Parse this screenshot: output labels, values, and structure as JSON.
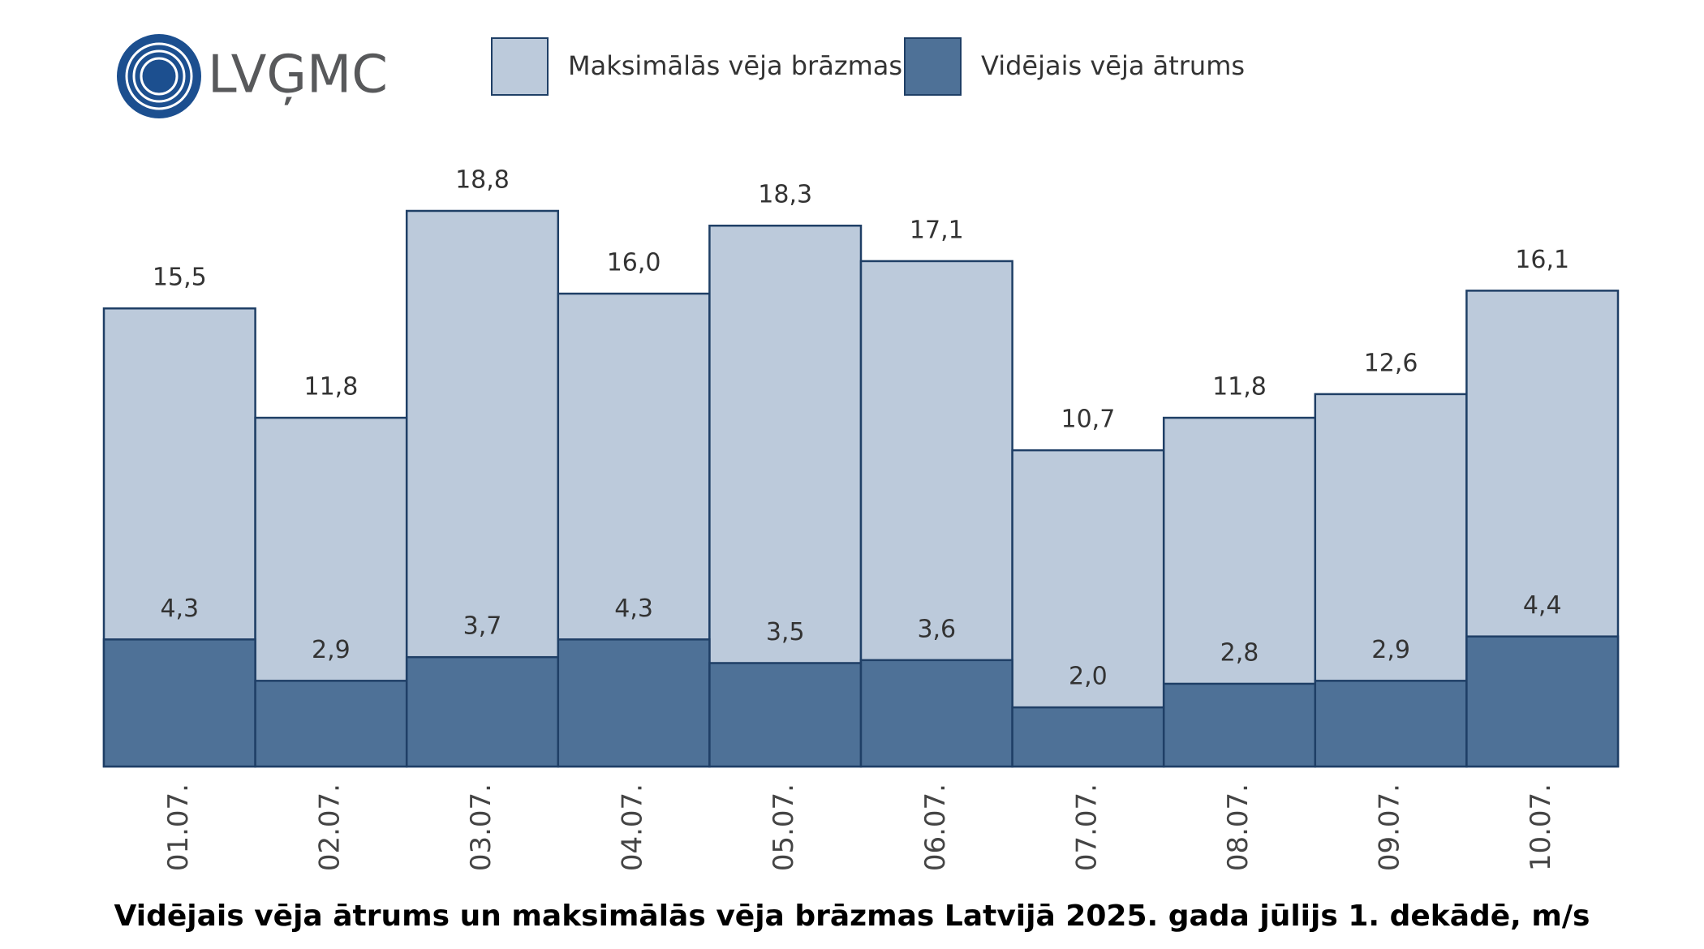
{
  "logo": "LVĢMC",
  "chart_data": {
    "type": "bar",
    "title": "Vidējais vēja ātrums un maksimālās vēja brāzmas Latvijā 2025. gada jūlijs 1. dekādē, m/s",
    "categories": [
      "01.07.",
      "02.07.",
      "03.07.",
      "04.07.",
      "05.07.",
      "06.07.",
      "07.07.",
      "08.07.",
      "09.07.",
      "10.07."
    ],
    "series": [
      {
        "name": "Maksimālās vēja brāzmas",
        "color": "#bccadb",
        "values": [
          15.5,
          11.8,
          18.8,
          16.0,
          18.3,
          17.1,
          10.7,
          11.8,
          12.6,
          16.1
        ],
        "value_labels": [
          "15,5",
          "11,8",
          "18,8",
          "16,0",
          "18,3",
          "17,1",
          "10,7",
          "11,8",
          "12,6",
          "16,1"
        ]
      },
      {
        "name": "Vidējais vēja ātrums",
        "color": "#4e7197",
        "values": [
          4.3,
          2.9,
          3.7,
          4.3,
          3.5,
          3.6,
          2.0,
          2.8,
          2.9,
          4.4
        ],
        "value_labels": [
          "4,3",
          "2,9",
          "3,7",
          "4,3",
          "3,5",
          "3,6",
          "2,0",
          "2,8",
          "2,9",
          "4,4"
        ]
      }
    ]
  }
}
